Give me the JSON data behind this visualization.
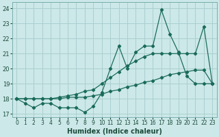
{
  "xlabel": "Humidex (Indice chaleur)",
  "bg_color": "#cce8e8",
  "grid_color": "#aacfcf",
  "line_color": "#1a6b5a",
  "xlim": [
    -0.5,
    23.5
  ],
  "ylim": [
    16.8,
    24.4
  ],
  "yticks": [
    17,
    18,
    19,
    20,
    21,
    22,
    23,
    24
  ],
  "xtick_labels": [
    "0",
    "1",
    "2",
    "3",
    "4",
    "5",
    "6",
    "7",
    "8",
    "9",
    "10",
    "11",
    "12",
    "13",
    "14",
    "15",
    "16",
    "17",
    "18",
    "19",
    "20",
    "21",
    "22",
    "23"
  ],
  "series": [
    [
      18.0,
      17.7,
      17.4,
      17.7,
      17.7,
      17.4,
      17.4,
      17.4,
      17.1,
      17.5,
      18.4,
      20.0,
      21.5,
      20.0,
      21.1,
      21.5,
      21.5,
      23.9,
      22.3,
      21.1,
      19.5,
      19.0,
      19.0,
      19.0
    ],
    [
      18.0,
      18.0,
      18.0,
      18.0,
      18.0,
      18.1,
      18.2,
      18.3,
      18.5,
      18.6,
      19.0,
      19.4,
      19.8,
      20.2,
      20.5,
      20.8,
      21.0,
      21.0,
      21.0,
      21.0,
      21.0,
      21.0,
      22.8,
      19.0
    ],
    [
      18.0,
      18.0,
      18.0,
      18.0,
      18.0,
      18.0,
      18.1,
      18.1,
      18.1,
      18.2,
      18.3,
      18.5,
      18.6,
      18.8,
      18.9,
      19.1,
      19.2,
      19.4,
      19.6,
      19.7,
      19.8,
      19.9,
      19.9,
      19.0
    ]
  ]
}
